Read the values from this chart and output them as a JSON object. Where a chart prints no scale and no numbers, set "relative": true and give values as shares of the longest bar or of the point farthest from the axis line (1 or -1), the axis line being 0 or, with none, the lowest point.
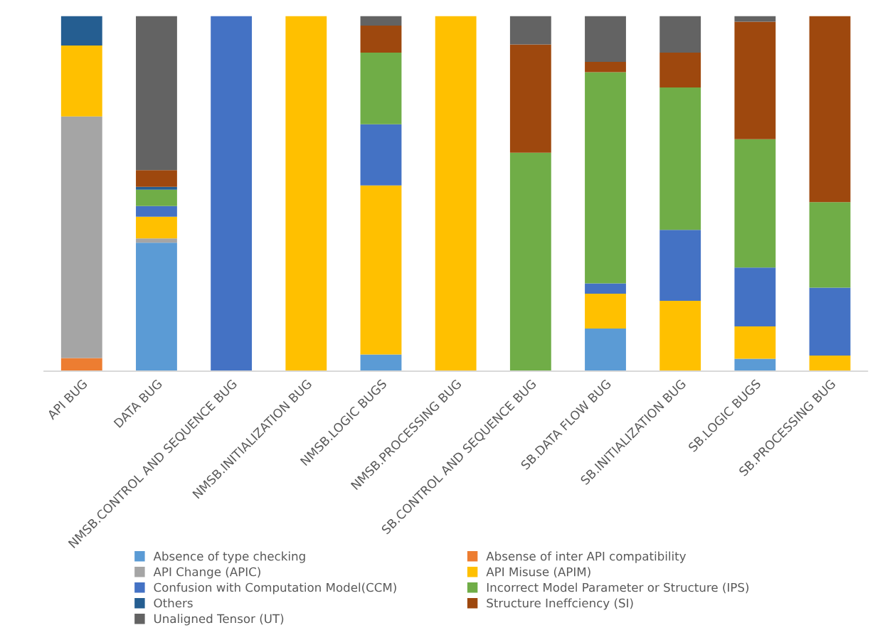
{
  "chart_data": {
    "type": "bar",
    "stacked": true,
    "relative": true,
    "legend": "bottom",
    "grid": false,
    "categories": [
      "API BUG",
      "DATA BUG",
      "NMSB.CONTROL AND SEQUENCE BUG",
      "NMSB.INITIALIZATION BUG",
      "NMSB.LOGIC BUGS",
      "NMSB.PROCESSING BUG",
      "SB.CONTROL AND SEQUENCE BUG",
      "SB.DATA FLOW BUG",
      "SB.INITIALIZATION BUG",
      "SB.LOGIC BUGS",
      "SB.PROCESSING BUG"
    ],
    "series": [
      {
        "name": "Absence of type checking",
        "color": "#5b9bd5",
        "values": [
          null,
          0.362,
          null,
          null,
          0.047,
          null,
          null,
          0.12,
          null,
          0.035,
          null
        ]
      },
      {
        "name": "Absense of inter API compatibility",
        "color": "#ed7d31",
        "values": [
          0.037,
          null,
          null,
          null,
          null,
          null,
          null,
          null,
          null,
          null,
          null
        ]
      },
      {
        "name": "API Change (APIC)",
        "color": "#a5a5a5",
        "values": [
          0.68,
          0.012,
          null,
          null,
          null,
          null,
          null,
          null,
          null,
          null,
          null
        ]
      },
      {
        "name": "API Misuse (APIM)",
        "color": "#ffc000",
        "values": [
          0.2,
          0.061,
          null,
          1,
          0.476,
          1,
          null,
          0.098,
          0.198,
          0.091,
          0.044
        ]
      },
      {
        "name": "Confusion with Computation Model(CCM)",
        "color": "#4472c4",
        "values": [
          null,
          0.03,
          1,
          null,
          0.172,
          null,
          null,
          0.029,
          0.2,
          0.166,
          0.191
        ]
      },
      {
        "name": "Incorrect Model Parameter or Structure (IPS)",
        "color": "#70ad47",
        "values": [
          null,
          0.046,
          null,
          null,
          0.202,
          null,
          0.615,
          0.595,
          0.401,
          0.361,
          0.241
        ]
      },
      {
        "name": "Others",
        "color": "#255e91",
        "values": [
          0.083,
          0.008,
          null,
          null,
          null,
          null,
          null,
          null,
          null,
          null,
          null
        ]
      },
      {
        "name": "Structure Ineffciency (SI)",
        "color": "#9e480e",
        "values": [
          null,
          0.047,
          null,
          null,
          0.076,
          null,
          0.305,
          0.029,
          0.098,
          0.331,
          0.524
        ]
      },
      {
        "name": "Unaligned Tensor (UT)",
        "color": "#636363",
        "values": [
          null,
          0.434,
          null,
          null,
          0.027,
          null,
          0.08,
          0.129,
          0.103,
          0.016,
          null
        ]
      }
    ]
  }
}
